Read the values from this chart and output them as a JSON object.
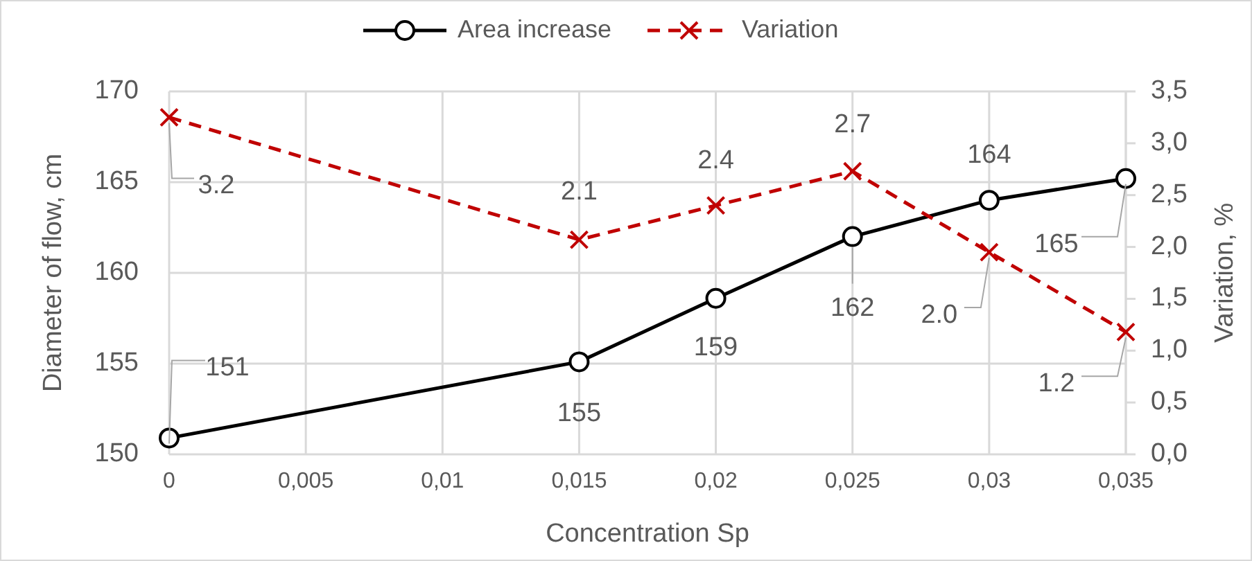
{
  "chart_data": {
    "type": "line",
    "xlabel": "Concentration Sp",
    "ylabel": "Diameter of flow, cm",
    "y2label": "Variation, %",
    "x": [
      0,
      0.015,
      0.02,
      0.025,
      0.03,
      0.035
    ],
    "xlim": [
      0,
      0.035
    ],
    "xticks": [
      0,
      {
        "value": 0.005,
        "label": "0,005"
      },
      {
        "value": 0.01,
        "label": "0,01"
      },
      {
        "value": 0.015,
        "label": "0,015"
      },
      {
        "value": 0.02,
        "label": "0,02"
      },
      {
        "value": 0.025,
        "label": "0,025"
      },
      {
        "value": 0.03,
        "label": "0,03"
      },
      {
        "value": 0.035,
        "label": "0,035"
      }
    ],
    "ylim": [
      150,
      170
    ],
    "yticks": [
      150,
      155,
      160,
      165,
      170
    ],
    "y2lim": [
      0,
      3.5
    ],
    "y2ticks": [
      {
        "value": 0,
        "label": "0,0"
      },
      {
        "value": 0.5,
        "label": "0,5"
      },
      {
        "value": 1,
        "label": "1,0"
      },
      {
        "value": 1.5,
        "label": "1,5"
      },
      {
        "value": 2,
        "label": "2,0"
      },
      {
        "value": 2.5,
        "label": "2,5"
      },
      {
        "value": 3,
        "label": "3,0"
      },
      {
        "value": 3.5,
        "label": "3,5"
      }
    ],
    "grid": true,
    "legend": "top",
    "series": [
      {
        "name": "Area increase",
        "color": "#000000",
        "marker": "circle",
        "line_style": "solid",
        "values": [
          150.9,
          155.1,
          158.6,
          162.0,
          164.0,
          165.2
        ],
        "value_labels": [
          "151",
          "155",
          "159",
          "162",
          "164",
          "165"
        ]
      },
      {
        "name": "Variation",
        "color": "#c00000",
        "marker": "cross",
        "line_style": "dashed",
        "axis": "y2",
        "values": [
          3.25,
          2.07,
          2.4,
          2.73,
          1.95,
          1.18
        ],
        "value_labels": [
          "3.2",
          "2.1",
          "2.4",
          "2.7",
          "2.0",
          "1.2"
        ]
      }
    ]
  }
}
